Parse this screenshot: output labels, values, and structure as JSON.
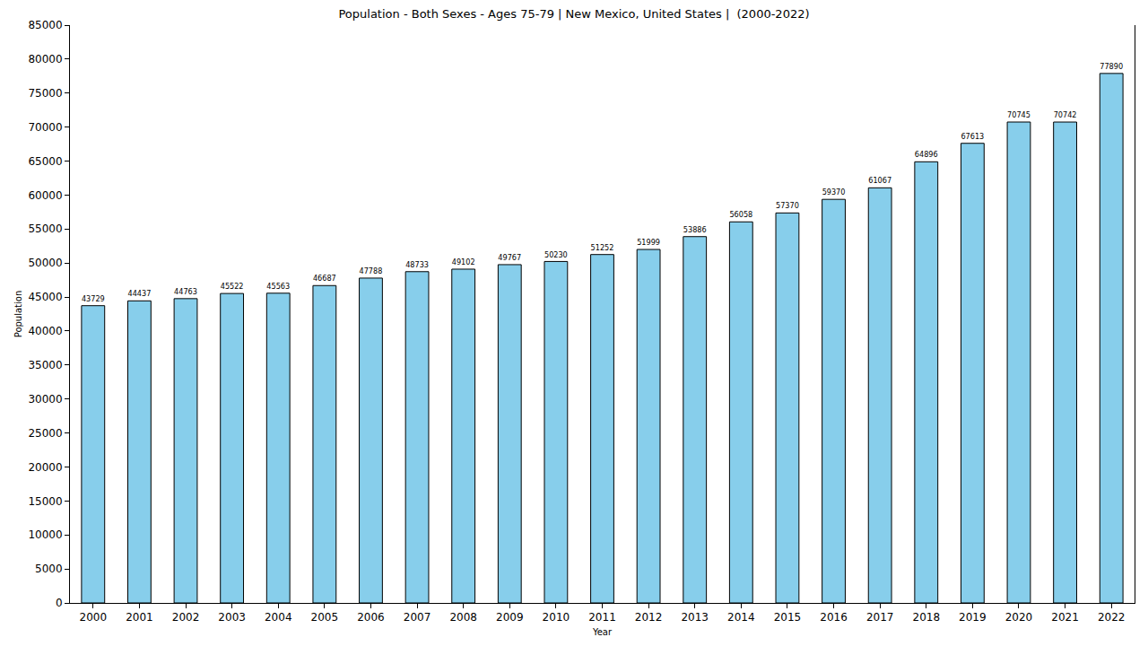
{
  "chart_data": {
    "type": "bar",
    "title": "Population - Both Sexes - Ages 75-79 | New Mexico, United States |  (2000-2022)",
    "x_label": "Year",
    "y_label": "Population",
    "categories": [
      "2000",
      "2001",
      "2002",
      "2003",
      "2004",
      "2005",
      "2006",
      "2007",
      "2008",
      "2009",
      "2010",
      "2011",
      "2012",
      "2013",
      "2014",
      "2015",
      "2016",
      "2017",
      "2018",
      "2019",
      "2020",
      "2021",
      "2022"
    ],
    "values": [
      43729,
      44437,
      44763,
      45522,
      45563,
      46687,
      47788,
      48733,
      49102,
      49767,
      50230,
      51252,
      51999,
      53886,
      56058,
      57370,
      59370,
      61067,
      64896,
      67613,
      70745,
      70742,
      77890
    ],
    "color": "#87ceeb",
    "ylim": [
      0,
      85000
    ],
    "yticks": [
      0,
      5000,
      10000,
      15000,
      20000,
      25000,
      30000,
      35000,
      40000,
      45000,
      50000,
      55000,
      60000,
      65000,
      70000,
      75000,
      80000,
      85000
    ],
    "grid": false,
    "data_labels": true
  }
}
